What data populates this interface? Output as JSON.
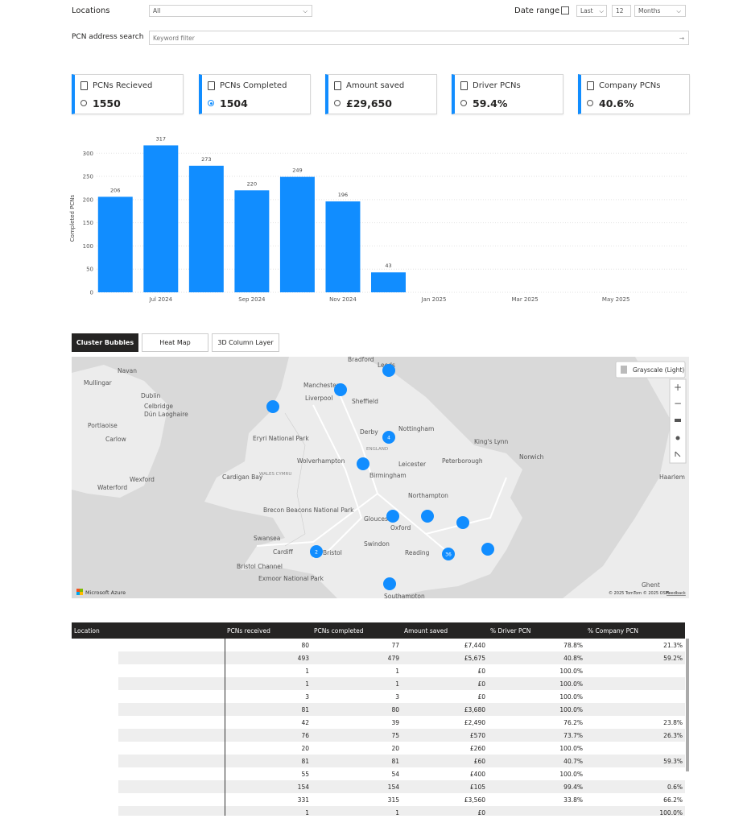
{
  "filters": {
    "locations_label": "Locations",
    "locations_value": "All",
    "date_range_label": "Date range",
    "date_mode": "Last",
    "date_count": "12",
    "date_unit": "Months",
    "search_label": "PCN address search",
    "search_placeholder": "Keyword filter"
  },
  "kpis": [
    {
      "title": "PCNs Recieved",
      "value": "1550",
      "selected": false
    },
    {
      "title": "PCNs Completed",
      "value": "1504",
      "selected": true
    },
    {
      "title": "Amount saved",
      "value": "£29,650",
      "selected": false
    },
    {
      "title": "Driver PCNs",
      "value": "59.4%",
      "selected": false
    },
    {
      "title": "Company PCNs",
      "value": "40.6%",
      "selected": false
    }
  ],
  "chart_data": {
    "type": "bar",
    "y_label": "Completed PCNs",
    "categories": [
      null,
      "Jul 2024",
      null,
      "Sep 2024",
      null,
      "Nov 2024",
      null,
      "Jan 2025",
      null,
      "Mar 2025",
      null,
      "May 2025",
      null
    ],
    "values": [
      206,
      317,
      273,
      220,
      249,
      196,
      43,
      null,
      null,
      null,
      null,
      null,
      null
    ],
    "color": "#118dff",
    "ylim": [
      0,
      330
    ],
    "yticks": [
      0,
      50,
      100,
      150,
      200,
      250,
      300
    ],
    "grid": true
  },
  "tabs": [
    {
      "label": "Cluster Bubbles",
      "active": true
    },
    {
      "label": "Heat Map",
      "active": false
    },
    {
      "label": "3D Column Layer",
      "active": false
    }
  ],
  "map": {
    "style_button": "Grayscale (Light)",
    "brand": "Microsoft Azure",
    "attribution": "© 2025 TomTom © 2025 OSM",
    "feedback": "Feedback",
    "places": [
      "Bradford",
      "Leeds",
      "Navan",
      "Mullingar",
      "Manchester",
      "Liverpool",
      "Sheffield",
      "Dublin",
      "Celbridge",
      "Dún Laoghaire",
      "Portlaoise",
      "Carlow",
      "Derby",
      "Nottingham",
      "ENGLAND",
      "King's Lynn",
      "Eryri National Park",
      "Wolverhampton",
      "Leicester",
      "Peterborough",
      "Norwich",
      "Birmingham",
      "WALES CYMRU",
      "Cardigan Bay",
      "Wexford",
      "Waterford",
      "Northampton",
      "Brecon Beacons National Park",
      "Gloucester",
      "Oxford",
      "Swansea",
      "Cardiff",
      "Bristol",
      "Swindon",
      "Reading",
      "Bristol Channel",
      "Exmoor National Park",
      "Southampton",
      "Haarlem",
      "Ghent"
    ],
    "cluster_labels": [
      "4",
      "2",
      "36"
    ]
  },
  "table": {
    "columns": [
      "Location",
      "PCNs received",
      "PCNs completed",
      "Amount saved",
      "% Driver PCN",
      "% Company PCN"
    ],
    "rows": [
      [
        "80",
        "77",
        "£7,440",
        "78.8%",
        "21.3%"
      ],
      [
        "493",
        "479",
        "£5,675",
        "40.8%",
        "59.2%"
      ],
      [
        "1",
        "1",
        "£0",
        "100.0%",
        null
      ],
      [
        "1",
        "1",
        "£0",
        "100.0%",
        null
      ],
      [
        "3",
        "3",
        "£0",
        "100.0%",
        null
      ],
      [
        "81",
        "80",
        "£3,680",
        "100.0%",
        null
      ],
      [
        "42",
        "39",
        "£2,490",
        "76.2%",
        "23.8%"
      ],
      [
        "76",
        "75",
        "£570",
        "73.7%",
        "26.3%"
      ],
      [
        "20",
        "20",
        "£260",
        "100.0%",
        null
      ],
      [
        "81",
        "81",
        "£60",
        "40.7%",
        "59.3%"
      ],
      [
        "55",
        "54",
        "£400",
        "100.0%",
        null
      ],
      [
        "154",
        "154",
        "£105",
        "99.4%",
        "0.6%"
      ],
      [
        "331",
        "315",
        "£3,560",
        "33.8%",
        "66.2%"
      ],
      [
        "1",
        "1",
        "£0",
        null,
        "100.0%"
      ]
    ]
  }
}
